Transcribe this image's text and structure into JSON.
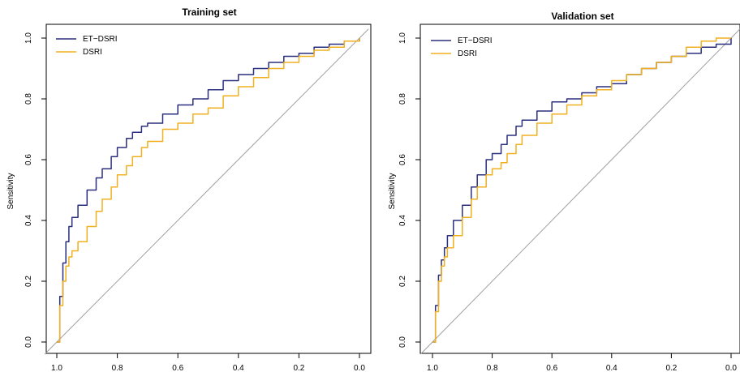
{
  "colors": {
    "et_dsri": "#2b2f7f",
    "dsri": "#f0b020",
    "diagonal": "#a0a0a0",
    "axis": "#000000"
  },
  "chart_data": [
    {
      "type": "line",
      "title": "Training set",
      "xlabel": "",
      "ylabel": "Sensitivity",
      "x_reversed": true,
      "xlim": [
        1.0,
        0.0
      ],
      "ylim": [
        0.0,
        1.0
      ],
      "xticks": [
        "1.0",
        "0.8",
        "0.6",
        "0.4",
        "0.2",
        "0.0"
      ],
      "yticks": [
        "0.0",
        "0.2",
        "0.4",
        "0.6",
        "0.8",
        "1.0"
      ],
      "grid": false,
      "legend_position": "top-left",
      "diagonal": true,
      "series": [
        {
          "name": "ET−DSRI",
          "color_key": "et_dsri",
          "x": [
            1.0,
            0.99,
            0.98,
            0.97,
            0.96,
            0.95,
            0.93,
            0.9,
            0.87,
            0.85,
            0.82,
            0.8,
            0.77,
            0.75,
            0.72,
            0.7,
            0.65,
            0.6,
            0.55,
            0.5,
            0.45,
            0.4,
            0.35,
            0.3,
            0.25,
            0.2,
            0.15,
            0.1,
            0.05,
            0.0
          ],
          "y": [
            0.0,
            0.15,
            0.26,
            0.33,
            0.38,
            0.41,
            0.45,
            0.5,
            0.54,
            0.57,
            0.61,
            0.64,
            0.67,
            0.69,
            0.71,
            0.72,
            0.75,
            0.78,
            0.8,
            0.83,
            0.86,
            0.88,
            0.9,
            0.92,
            0.94,
            0.95,
            0.97,
            0.98,
            0.99,
            1.0
          ]
        },
        {
          "name": "DSRI",
          "color_key": "dsri",
          "x": [
            1.0,
            0.99,
            0.98,
            0.97,
            0.96,
            0.95,
            0.93,
            0.9,
            0.87,
            0.85,
            0.82,
            0.8,
            0.77,
            0.75,
            0.72,
            0.7,
            0.65,
            0.6,
            0.55,
            0.5,
            0.45,
            0.4,
            0.35,
            0.3,
            0.25,
            0.2,
            0.15,
            0.1,
            0.05,
            0.0
          ],
          "y": [
            0.0,
            0.12,
            0.2,
            0.25,
            0.28,
            0.3,
            0.33,
            0.38,
            0.43,
            0.47,
            0.51,
            0.55,
            0.58,
            0.61,
            0.64,
            0.66,
            0.7,
            0.72,
            0.75,
            0.77,
            0.81,
            0.84,
            0.87,
            0.9,
            0.92,
            0.94,
            0.96,
            0.97,
            0.99,
            1.0
          ]
        }
      ]
    },
    {
      "type": "line",
      "title": "Validation set",
      "xlabel": "",
      "ylabel": "Sensitivity",
      "x_reversed": true,
      "xlim": [
        1.0,
        0.0
      ],
      "ylim": [
        0.0,
        1.0
      ],
      "xticks": [
        "1.0",
        "0.8",
        "0.6",
        "0.4",
        "0.2",
        "0.0"
      ],
      "yticks": [
        "0.0",
        "0.2",
        "0.4",
        "0.6",
        "0.8",
        "1.0"
      ],
      "grid": false,
      "legend_position": "top-left",
      "diagonal": true,
      "series": [
        {
          "name": "ET−DSRI",
          "color_key": "et_dsri",
          "x": [
            1.0,
            0.99,
            0.98,
            0.97,
            0.96,
            0.95,
            0.93,
            0.9,
            0.87,
            0.85,
            0.82,
            0.8,
            0.77,
            0.75,
            0.72,
            0.7,
            0.65,
            0.6,
            0.55,
            0.5,
            0.45,
            0.4,
            0.35,
            0.3,
            0.25,
            0.2,
            0.15,
            0.1,
            0.05,
            0.0
          ],
          "y": [
            0.0,
            0.12,
            0.22,
            0.27,
            0.31,
            0.35,
            0.4,
            0.45,
            0.51,
            0.55,
            0.6,
            0.62,
            0.65,
            0.68,
            0.71,
            0.73,
            0.76,
            0.79,
            0.8,
            0.82,
            0.84,
            0.85,
            0.88,
            0.9,
            0.92,
            0.94,
            0.95,
            0.97,
            0.98,
            1.0
          ]
        },
        {
          "name": "DSRI",
          "color_key": "dsri",
          "x": [
            1.0,
            0.99,
            0.98,
            0.97,
            0.96,
            0.95,
            0.93,
            0.9,
            0.87,
            0.85,
            0.82,
            0.8,
            0.77,
            0.75,
            0.72,
            0.7,
            0.65,
            0.6,
            0.55,
            0.5,
            0.45,
            0.4,
            0.35,
            0.3,
            0.25,
            0.2,
            0.15,
            0.1,
            0.05,
            0.0
          ],
          "y": [
            0.0,
            0.1,
            0.2,
            0.25,
            0.28,
            0.31,
            0.35,
            0.41,
            0.47,
            0.51,
            0.55,
            0.57,
            0.59,
            0.62,
            0.65,
            0.68,
            0.72,
            0.75,
            0.78,
            0.81,
            0.83,
            0.86,
            0.88,
            0.9,
            0.92,
            0.94,
            0.97,
            0.99,
            1.0,
            1.0
          ]
        }
      ]
    }
  ]
}
